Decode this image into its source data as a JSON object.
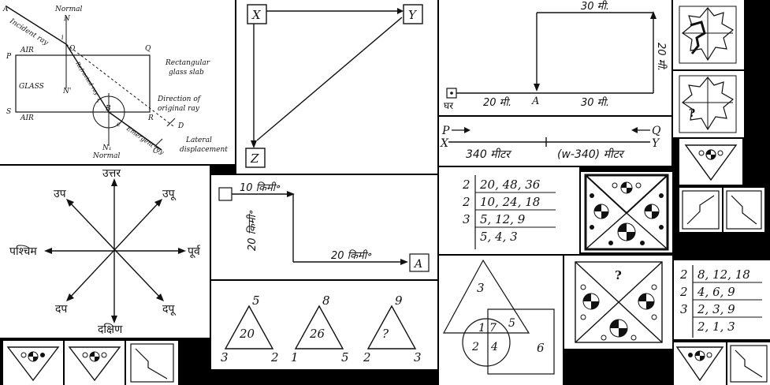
{
  "optics": {
    "normal_top": "Normal",
    "N": "N",
    "A": "A",
    "incident_ray": "Incident ray",
    "O": "O",
    "i": "i",
    "P": "P",
    "Q": "Q",
    "air_top": "AIR",
    "rect_slab_1": "Rectangular",
    "rect_slab_2": "glass slab",
    "glass": "GLASS",
    "N_prime": "N'",
    "refracted_ray": "Refracted ray",
    "r": "r",
    "B": "B",
    "direction_1": "Direction of",
    "direction_2": "original ray",
    "S": "S",
    "air_bottom": "AIR",
    "R": "R",
    "D": "D",
    "e": "e",
    "emergent_ray": "Emergent ray",
    "N1": "N₁",
    "normal_bottom": "Normal",
    "C": "C",
    "lateral_1": "Lateral",
    "lateral_2": "displacement"
  },
  "xyz": {
    "X": "X",
    "Y": "Y",
    "Z": "Z"
  },
  "house_path": {
    "top": "30 मी.",
    "right": "20 मी.",
    "home": "घर",
    "left_bottom": "20 मी.",
    "A": "A",
    "right_bottom": "30 मी."
  },
  "mirror_top": {
    "question": ""
  },
  "mirror_mid": {
    "question": "?"
  },
  "pq_line": {
    "P": "P",
    "Q": "Q",
    "X": "X",
    "Y": "Y",
    "left_dist": "340 मीटर",
    "right_dist": "(w-340) मीटर"
  },
  "compass": {
    "north": "उत्तर",
    "south": "दक्षिण",
    "east": "पूर्व",
    "west": "पश्चिम",
    "ne": "उपू",
    "nw": "उप",
    "se": "दपू",
    "sw": "दप"
  },
  "walk": {
    "top": "10 किमी॰",
    "side": "20 किमी॰",
    "bottom": "20 किमी॰",
    "A": "A"
  },
  "division1": {
    "rows": [
      {
        "divisor": "2",
        "values": "20, 48, 36"
      },
      {
        "divisor": "2",
        "values": "10, 24, 18"
      },
      {
        "divisor": "3",
        "values": "5, 12, 9"
      },
      {
        "divisor": "",
        "values": "5, 4, 3"
      }
    ]
  },
  "division2": {
    "rows": [
      {
        "divisor": "2",
        "values": "8, 12, 18"
      },
      {
        "divisor": "2",
        "values": "4, 6, 9"
      },
      {
        "divisor": "3",
        "values": "2, 3, 9"
      },
      {
        "divisor": "",
        "values": "2, 1, 3"
      }
    ]
  },
  "triangles": [
    {
      "top": "5",
      "center": "20",
      "left": "3",
      "right": "2"
    },
    {
      "top": "8",
      "center": "26",
      "left": "1",
      "right": "5"
    },
    {
      "top": "9",
      "center": "?",
      "left": "2",
      "right": "3"
    }
  ],
  "venn": {
    "triangle": "3",
    "overlap_all": "7",
    "circle_triangle": "1",
    "circle_only": "2",
    "circle_square": "4",
    "triangle_square": "5",
    "square_only": "6"
  },
  "square_puzzle": {
    "question": "?"
  }
}
